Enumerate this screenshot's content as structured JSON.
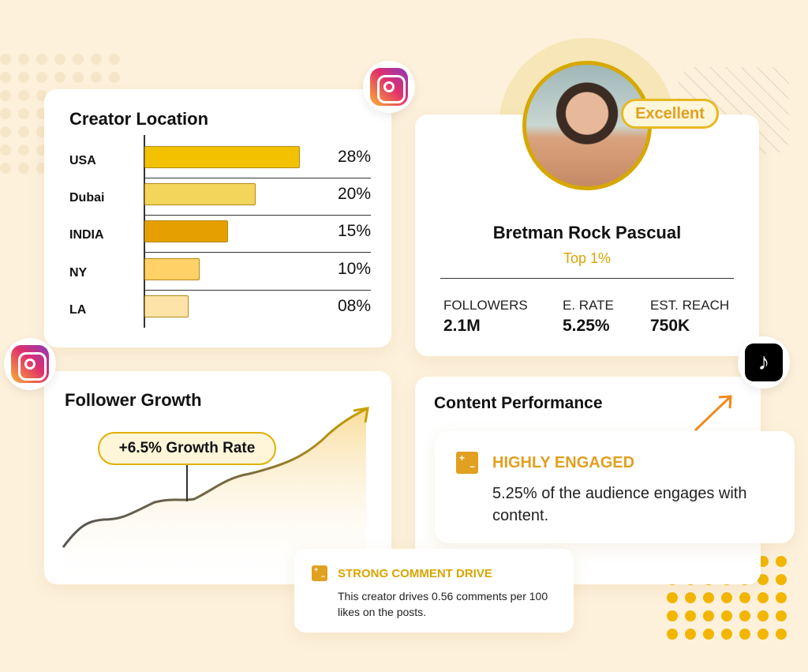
{
  "location": {
    "title": "Creator Location",
    "rows": [
      {
        "label": "USA",
        "value": 28,
        "text": "28%",
        "color": "#f2c200"
      },
      {
        "label": "Dubai",
        "value": 20,
        "text": "20%",
        "color": "#f2d55a"
      },
      {
        "label": "INDIA",
        "value": 15,
        "text": "15%",
        "color": "#e5a000"
      },
      {
        "label": "NY",
        "value": 10,
        "text": "10%",
        "color": "#ffd166"
      },
      {
        "label": "LA",
        "value": 8,
        "text": "08%",
        "color": "#fde3a8"
      }
    ]
  },
  "profile": {
    "badge": "Excellent",
    "name": "Bretman Rock Pascual",
    "rank": "Top 1%",
    "stats": [
      {
        "label": "FOLLOWERS",
        "value": "2.1M"
      },
      {
        "label": "E. RATE",
        "value": "5.25%"
      },
      {
        "label": "EST. REACH",
        "value": "750K"
      }
    ]
  },
  "growth": {
    "title": "Follower Growth",
    "badge": "+6.5% Growth Rate"
  },
  "content": {
    "title": "Content Performance",
    "engaged_title": "HIGHLY ENGAGED",
    "engaged_text": "5.25% of the audience engages with content."
  },
  "comment": {
    "title": "STRONG COMMENT DRIVE",
    "text": "This creator drives 0.56 comments per 100 likes on the posts."
  },
  "icons": {
    "instagram": "instagram-icon",
    "tiktok": "tiktok-icon"
  },
  "colors": {
    "accent": "#e0a020",
    "background": "#fdf1dc",
    "dots": "#f2b600"
  }
}
